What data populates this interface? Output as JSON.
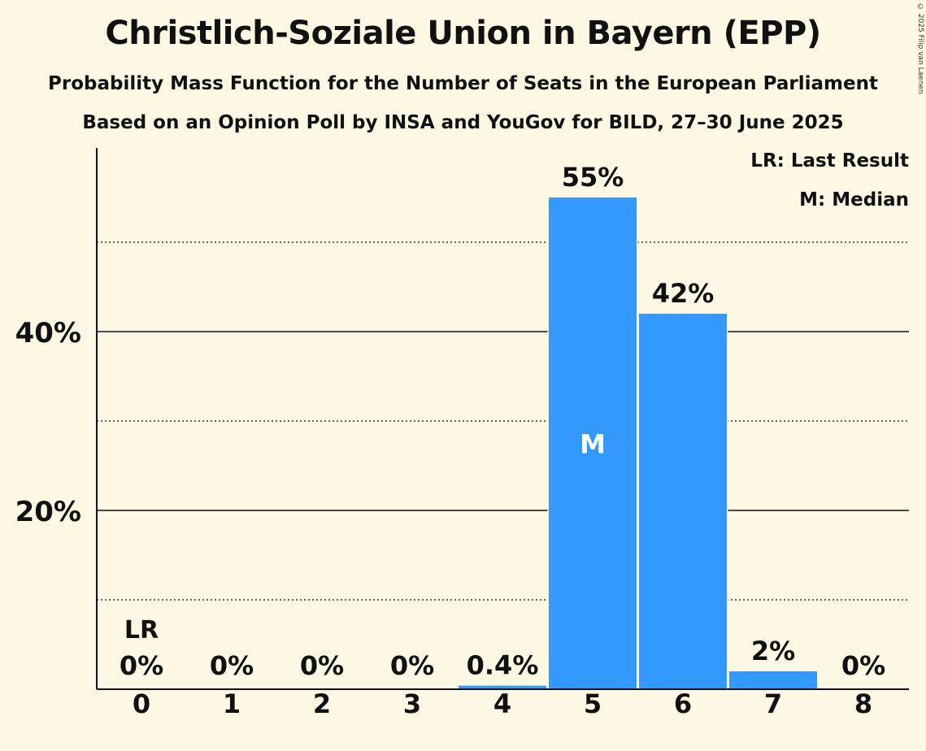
{
  "title": "Christlich-Soziale Union in Bayern (EPP)",
  "subtitle": "Probability Mass Function for the Number of Seats in the European Parliament",
  "subtitle2": "Based on an Opinion Poll by INSA and YouGov for BILD, 27–30 June 2025",
  "copyright": "© 2025 Filip van Laenen",
  "legend": {
    "last_result": "LR: Last Result",
    "median": "M: Median"
  },
  "chart_data": {
    "type": "bar",
    "categories": [
      "0",
      "1",
      "2",
      "3",
      "4",
      "5",
      "6",
      "7",
      "8"
    ],
    "values": [
      0,
      0,
      0,
      0,
      0.4,
      55,
      42,
      2,
      0
    ],
    "value_labels": [
      "0%",
      "0%",
      "0%",
      "0%",
      "0.4%",
      "55%",
      "42%",
      "2%",
      "0%"
    ],
    "yticks": [
      {
        "value": 20,
        "label": "20%"
      },
      {
        "value": 40,
        "label": "40%"
      }
    ],
    "minor_gridlines": [
      10,
      30,
      50
    ],
    "ylim": [
      0,
      60
    ],
    "last_result_category": "0",
    "last_result_label": "LR",
    "median_category": "5",
    "median_label": "M",
    "bar_color": "#3399ff",
    "background_color": "#fdf8e4"
  }
}
